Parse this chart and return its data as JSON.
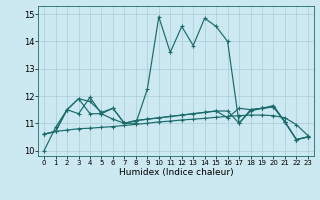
{
  "xlabel": "Humidex (Indice chaleur)",
  "xlim": [
    -0.5,
    23.5
  ],
  "ylim": [
    9.8,
    15.3
  ],
  "yticks": [
    10,
    11,
    12,
    13,
    14,
    15
  ],
  "xticks": [
    0,
    1,
    2,
    3,
    4,
    5,
    6,
    7,
    8,
    9,
    10,
    11,
    12,
    13,
    14,
    15,
    16,
    17,
    18,
    19,
    20,
    21,
    22,
    23
  ],
  "bg_color": "#cce8f0",
  "grid_color": "#aaccd8",
  "line_color": "#1a6b6b",
  "lines": [
    [
      10.0,
      10.85,
      11.5,
      11.9,
      11.8,
      11.4,
      11.55,
      11.0,
      11.0,
      12.25,
      14.9,
      13.6,
      14.55,
      13.85,
      14.85,
      14.55,
      14.0,
      11.0,
      11.45,
      11.55,
      11.65,
      11.05,
      10.4,
      10.5
    ],
    [
      10.6,
      10.7,
      11.5,
      11.35,
      11.95,
      11.35,
      11.15,
      11.0,
      11.1,
      11.15,
      11.2,
      11.25,
      11.3,
      11.35,
      11.4,
      11.45,
      11.2,
      11.55,
      11.5,
      11.55,
      11.6,
      11.05,
      10.4,
      10.5
    ],
    [
      10.6,
      10.7,
      10.75,
      10.8,
      10.82,
      10.85,
      10.88,
      10.92,
      10.96,
      11.0,
      11.05,
      11.08,
      11.12,
      11.15,
      11.18,
      11.22,
      11.25,
      11.28,
      11.3,
      11.3,
      11.28,
      11.2,
      10.95,
      10.55
    ],
    [
      10.6,
      10.7,
      11.5,
      11.9,
      11.35,
      11.35,
      11.55,
      11.0,
      11.1,
      11.15,
      11.2,
      11.25,
      11.3,
      11.35,
      11.4,
      11.45,
      11.45,
      11.0,
      11.5,
      11.55,
      11.6,
      11.05,
      10.4,
      10.5
    ]
  ]
}
